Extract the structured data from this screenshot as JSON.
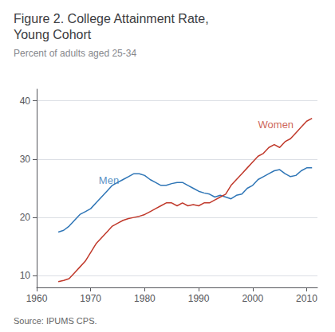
{
  "chart_data": {
    "type": "line",
    "title": [
      "Figure 2. College Attainment Rate,",
      "Young Cohort"
    ],
    "subtitle": "Percent of adults aged 25-34",
    "source": "Source: IPUMS CPS.",
    "x": [
      1964,
      1965,
      1966,
      1967,
      1968,
      1969,
      1970,
      1971,
      1972,
      1973,
      1974,
      1975,
      1976,
      1977,
      1978,
      1979,
      1980,
      1981,
      1982,
      1983,
      1984,
      1985,
      1986,
      1987,
      1988,
      1989,
      1990,
      1991,
      1992,
      1993,
      1994,
      1995,
      1996,
      1997,
      1998,
      1999,
      2000,
      2001,
      2002,
      2003,
      2004,
      2005,
      2006,
      2007,
      2008,
      2009,
      2010,
      2011
    ],
    "series": [
      {
        "name": "Men",
        "color": "#2e75b6",
        "values": [
          17.5,
          17.8,
          18.5,
          19.5,
          20.5,
          21.0,
          21.5,
          22.5,
          23.5,
          24.5,
          25.5,
          26.0,
          26.5,
          27.0,
          27.5,
          27.5,
          27.2,
          26.5,
          26.0,
          25.5,
          25.5,
          25.8,
          26.0,
          26.0,
          25.5,
          25.0,
          24.5,
          24.2,
          24.0,
          23.5,
          23.8,
          23.5,
          23.2,
          23.8,
          24.0,
          25.0,
          25.5,
          26.5,
          27.0,
          27.5,
          28.0,
          28.2,
          27.5,
          27.0,
          27.2,
          28.0,
          28.5,
          28.5
        ]
      },
      {
        "name": "Women",
        "color": "#c0392b",
        "values": [
          9.0,
          9.2,
          9.5,
          10.5,
          11.5,
          12.5,
          14.0,
          15.5,
          16.5,
          17.5,
          18.5,
          19.0,
          19.5,
          19.8,
          20.0,
          20.2,
          20.5,
          21.0,
          21.5,
          22.0,
          22.5,
          22.5,
          22.0,
          22.5,
          22.0,
          22.2,
          22.0,
          22.5,
          22.5,
          23.0,
          23.5,
          24.0,
          25.5,
          26.5,
          27.5,
          28.5,
          29.5,
          30.5,
          31.0,
          32.0,
          32.5,
          32.0,
          33.0,
          33.5,
          34.5,
          35.5,
          36.5,
          37.0
        ]
      }
    ],
    "annotations": [
      {
        "text": "Men",
        "x": 1971.5,
        "y": 25.5
      },
      {
        "text": "Women",
        "x": 2001.0,
        "y": 35.0
      }
    ],
    "xlim": [
      1960,
      2012
    ],
    "xticks": [
      1960,
      1970,
      1980,
      1990,
      2000,
      2010
    ],
    "ylim": [
      8,
      42
    ],
    "yticks": [
      10,
      20,
      30,
      40
    ],
    "grid": true
  }
}
